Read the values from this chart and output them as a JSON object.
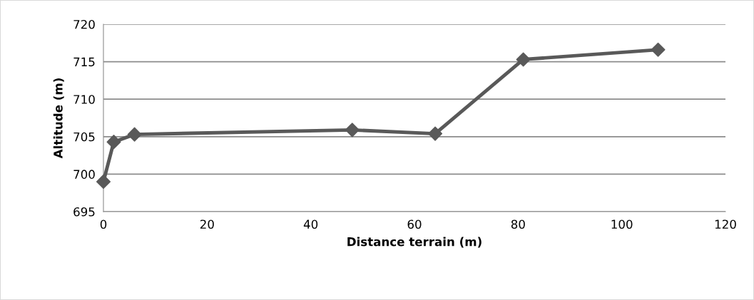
{
  "chart_data": {
    "type": "line",
    "xlabel": "Distance terrain (m)",
    "ylabel": "Altitude (m)",
    "x": [
      0,
      2,
      6,
      48,
      64,
      81,
      107
    ],
    "series": [
      {
        "color": "#595959",
        "values": [
          699.0,
          704.3,
          705.3,
          705.9,
          705.4,
          715.3,
          716.6
        ]
      }
    ],
    "xlim": [
      0,
      120
    ],
    "xticks": [
      0,
      20,
      40,
      60,
      80,
      100,
      120
    ],
    "ylim": [
      695,
      720
    ],
    "yticks": [
      695,
      700,
      705,
      710,
      715,
      720
    ],
    "grid": "y",
    "marker": "diamond",
    "line_style": "solid"
  }
}
